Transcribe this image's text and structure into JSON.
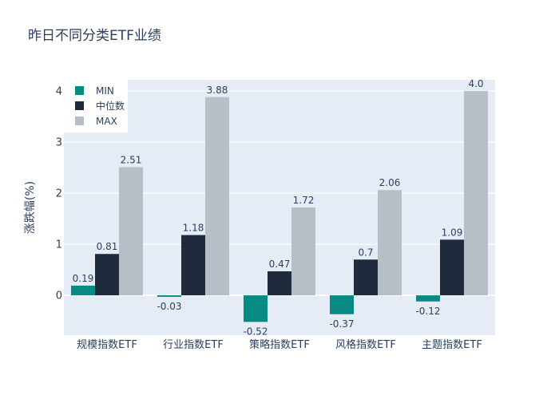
{
  "chart_data": {
    "type": "bar",
    "title": "昨日不同分类ETF业绩",
    "xlabel": "",
    "ylabel": "涨跌幅(%)",
    "ylim": [
      -0.78,
      4.22
    ],
    "yticks": [
      0,
      1,
      2,
      3,
      4
    ],
    "grid": true,
    "legend_position": "top-left",
    "categories": [
      "规模指数ETF",
      "行业指数ETF",
      "策略指数ETF",
      "风格指数ETF",
      "主题指数ETF"
    ],
    "series": [
      {
        "name": "MIN",
        "color": "#078a83",
        "values": [
          0.19,
          -0.03,
          -0.52,
          -0.37,
          -0.12
        ],
        "labels": [
          "0.19",
          "-0.03",
          "-0.52",
          "-0.37",
          "-0.12"
        ]
      },
      {
        "name": "中位数",
        "color": "#1f2a3c",
        "values": [
          0.81,
          1.18,
          0.47,
          0.7,
          1.09
        ],
        "labels": [
          "0.81",
          "1.18",
          "0.47",
          "0.7",
          "1.09"
        ]
      },
      {
        "name": "MAX",
        "color": "#b8bec6",
        "values": [
          2.51,
          3.88,
          1.72,
          2.06,
          4.0
        ],
        "labels": [
          "2.51",
          "3.88",
          "1.72",
          "2.06",
          "4.0"
        ]
      }
    ]
  },
  "colors": {
    "plot_bg": "#e5ecf6",
    "grid": "#ffffff",
    "text": "#2a3f5f"
  }
}
